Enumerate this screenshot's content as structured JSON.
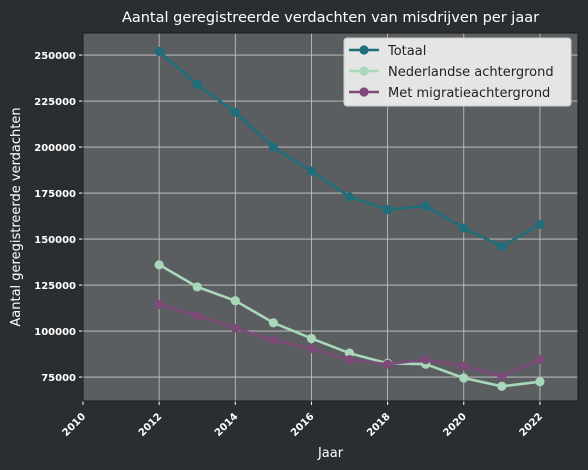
{
  "chart_data": {
    "type": "line",
    "title": "Aantal geregistreerde verdachten van misdrijven per jaar",
    "xlabel": "Jaar",
    "ylabel": "Aantal geregistreerde verdachten",
    "x": [
      2012,
      2013,
      2014,
      2015,
      2016,
      2017,
      2018,
      2019,
      2020,
      2021,
      2022
    ],
    "xlim": [
      2010,
      2023
    ],
    "xticks": [
      2010,
      2012,
      2014,
      2016,
      2018,
      2020,
      2022
    ],
    "ylim": [
      62000,
      262000
    ],
    "yticks": [
      75000,
      100000,
      125000,
      150000,
      175000,
      200000,
      225000,
      250000
    ],
    "grid": true,
    "legend_position": "top-right",
    "series": [
      {
        "name": "Totaal",
        "color": "#1f6e7c",
        "values": [
          252000,
          234000,
          219000,
          200000,
          187000,
          173000,
          166000,
          168000,
          156000,
          146000,
          158000
        ]
      },
      {
        "name": "Nederlandse achtergrond",
        "color": "#a8d8b9",
        "values": [
          136000,
          124000,
          116500,
          104500,
          96000,
          88000,
          82500,
          82000,
          74500,
          70000,
          72500
        ]
      },
      {
        "name": "Met migratieachtergrond",
        "color": "#7e4a78",
        "values": [
          114500,
          108500,
          101500,
          95000,
          90500,
          84500,
          82000,
          84500,
          81000,
          75500,
          84500
        ]
      }
    ],
    "colors": {
      "page_background": "#2b2e31",
      "plot_background": "#5b5e61",
      "grid": "#c8c8c8"
    }
  }
}
